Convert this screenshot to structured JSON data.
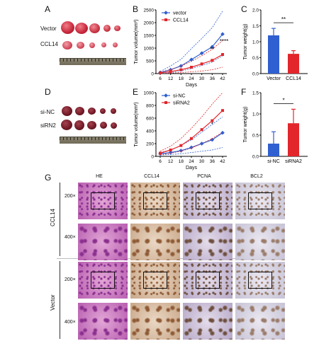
{
  "panels": {
    "A": "A",
    "B": "B",
    "C": "C",
    "D": "D",
    "E": "E",
    "F": "F",
    "G": "G"
  },
  "panel_a": {
    "row1": "Vector",
    "row2": "CCL14"
  },
  "panel_d": {
    "row1": "si-NC",
    "row2": "siRN2"
  },
  "panel_g": {
    "columns": [
      "HE",
      "CCL14",
      "PCNA",
      "BCL2"
    ],
    "groups": [
      "CCL14",
      "Vector"
    ],
    "magnifications": [
      "200×",
      "400×",
      "200×",
      "400×"
    ]
  },
  "colors": {
    "blue": "#2f5fd0",
    "red": "#e2262b"
  },
  "chart_data": [
    {
      "id": "B",
      "type": "line",
      "x": [
        6,
        12,
        18,
        24,
        30,
        36,
        42
      ],
      "series": [
        {
          "name": "vector",
          "values": [
            40,
            150,
            300,
            550,
            800,
            1050,
            1550
          ],
          "ci_upper": [
            80,
            300,
            560,
            980,
            1380,
            1800,
            2450
          ],
          "ci_lower": [
            10,
            40,
            100,
            200,
            320,
            450,
            700
          ]
        },
        {
          "name": "CCL14",
          "values": [
            30,
            80,
            150,
            250,
            380,
            520,
            750
          ],
          "ci_upper": [
            60,
            160,
            290,
            480,
            700,
            950,
            1300
          ],
          "ci_lower": [
            5,
            20,
            40,
            70,
            100,
            150,
            250
          ]
        }
      ],
      "xlabel": "Days",
      "ylabel": "Tumor volume(mm³)",
      "ylim": [
        0,
        2500
      ],
      "yticks": [
        0,
        500,
        1000,
        1500,
        2000,
        2500
      ],
      "annotations": [
        "**",
        "****"
      ]
    },
    {
      "id": "C",
      "type": "bar",
      "categories": [
        "Vector",
        "CCL14"
      ],
      "values": [
        1.2,
        0.62
      ],
      "errors": [
        0.22,
        0.1
      ],
      "ylabel": "Tumor weight(g)",
      "ylim": [
        0,
        2.0
      ],
      "yticks": [
        0.0,
        0.5,
        1.0,
        1.5,
        2.0
      ],
      "annotation": "**"
    },
    {
      "id": "E",
      "type": "line",
      "x": [
        6,
        12,
        18,
        24,
        30,
        36,
        42
      ],
      "series": [
        {
          "name": "si-NC",
          "values": [
            40,
            60,
            90,
            140,
            200,
            260,
            370
          ],
          "ci_upper": [
            60,
            100,
            170,
            260,
            380,
            500,
            620
          ],
          "ci_lower": [
            20,
            30,
            40,
            60,
            80,
            100,
            140
          ]
        },
        {
          "name": "siRNA2",
          "values": [
            50,
            100,
            170,
            280,
            420,
            560,
            720
          ],
          "ci_upper": [
            80,
            160,
            280,
            440,
            620,
            820,
            1000
          ],
          "ci_lower": [
            25,
            50,
            80,
            130,
            200,
            280,
            380
          ]
        }
      ],
      "xlabel": "Days",
      "ylabel": "Tumor volume(mm³)",
      "ylim": [
        0,
        1000
      ],
      "yticks": [
        0,
        200,
        400,
        600,
        800,
        1000
      ],
      "annotations": [
        "*"
      ]
    },
    {
      "id": "F",
      "type": "bar",
      "categories": [
        "si-NC",
        "siRNA2"
      ],
      "values": [
        0.3,
        0.78
      ],
      "errors": [
        0.28,
        0.33
      ],
      "ylabel": "Tumor weight(g)",
      "ylim": [
        0,
        1.5
      ],
      "yticks": [
        0.0,
        0.5,
        1.0,
        1.5
      ],
      "annotation": "*"
    }
  ]
}
